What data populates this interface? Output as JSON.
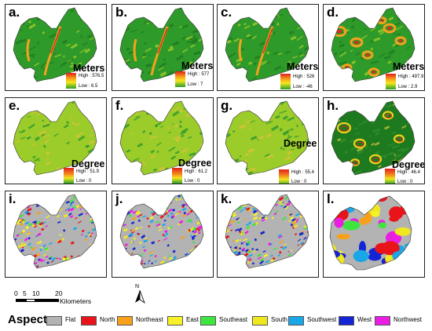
{
  "panels": [
    {
      "label": "a.",
      "unit": "Meters",
      "high": "High : 576.5",
      "low": "Low : 6.5",
      "kind": "elev"
    },
    {
      "label": "b.",
      "unit": "Meters",
      "high": "High : 577",
      "low": "Low : 7",
      "kind": "elev"
    },
    {
      "label": "c.",
      "unit": "Meters",
      "high": "High : 526",
      "low": "Low : -46",
      "kind": "elev"
    },
    {
      "label": "d.",
      "unit": "Meters",
      "high": "High : 497.9",
      "low": "Low : 2.9",
      "kind": "elevdiff"
    },
    {
      "label": "e.",
      "unit": "Degree",
      "high": "High : 51.9",
      "low": "Low : 0",
      "kind": "slope"
    },
    {
      "label": "f.",
      "unit": "Degree",
      "high": "High : 61.2",
      "low": "Low : 0",
      "kind": "slope"
    },
    {
      "label": "g.",
      "unit": "Degree",
      "high": "High : 55.4",
      "low": "Low : 0",
      "kind": "slope"
    },
    {
      "label": "h.",
      "unit": "Degree",
      "high": "High : 46.4",
      "low": "Low : 0",
      "kind": "slopediff"
    },
    {
      "label": "i.",
      "kind": "aspect"
    },
    {
      "label": "j.",
      "kind": "aspect"
    },
    {
      "label": "k.",
      "kind": "aspect"
    },
    {
      "label": "l.",
      "kind": "aspectcoarse"
    }
  ],
  "scale": {
    "ticks": [
      "0",
      "5",
      "10",
      "20"
    ],
    "unit": "Kilometers"
  },
  "north": {
    "letter": "N"
  },
  "legend": {
    "title": "Aspect",
    "items": [
      {
        "label": "Flat",
        "color": "#b3b3b3"
      },
      {
        "label": "North",
        "color": "#e8141a"
      },
      {
        "label": "Northeast",
        "color": "#f7a11a"
      },
      {
        "label": "East",
        "color": "#f7f227"
      },
      {
        "label": "Southeast",
        "color": "#3ee53e"
      },
      {
        "label": "South",
        "color": "#f0e81e"
      },
      {
        "label": "Southwest",
        "color": "#1aa7e8"
      },
      {
        "label": "West",
        "color": "#1426d4"
      },
      {
        "label": "Northwest",
        "color": "#ea1ee3"
      }
    ]
  },
  "colors": {
    "green_dark": "#1e7a1e",
    "green": "#2e9a2a",
    "yellow_green": "#9ccc2a",
    "orange": "#f3a21e",
    "red": "#e3261c"
  }
}
